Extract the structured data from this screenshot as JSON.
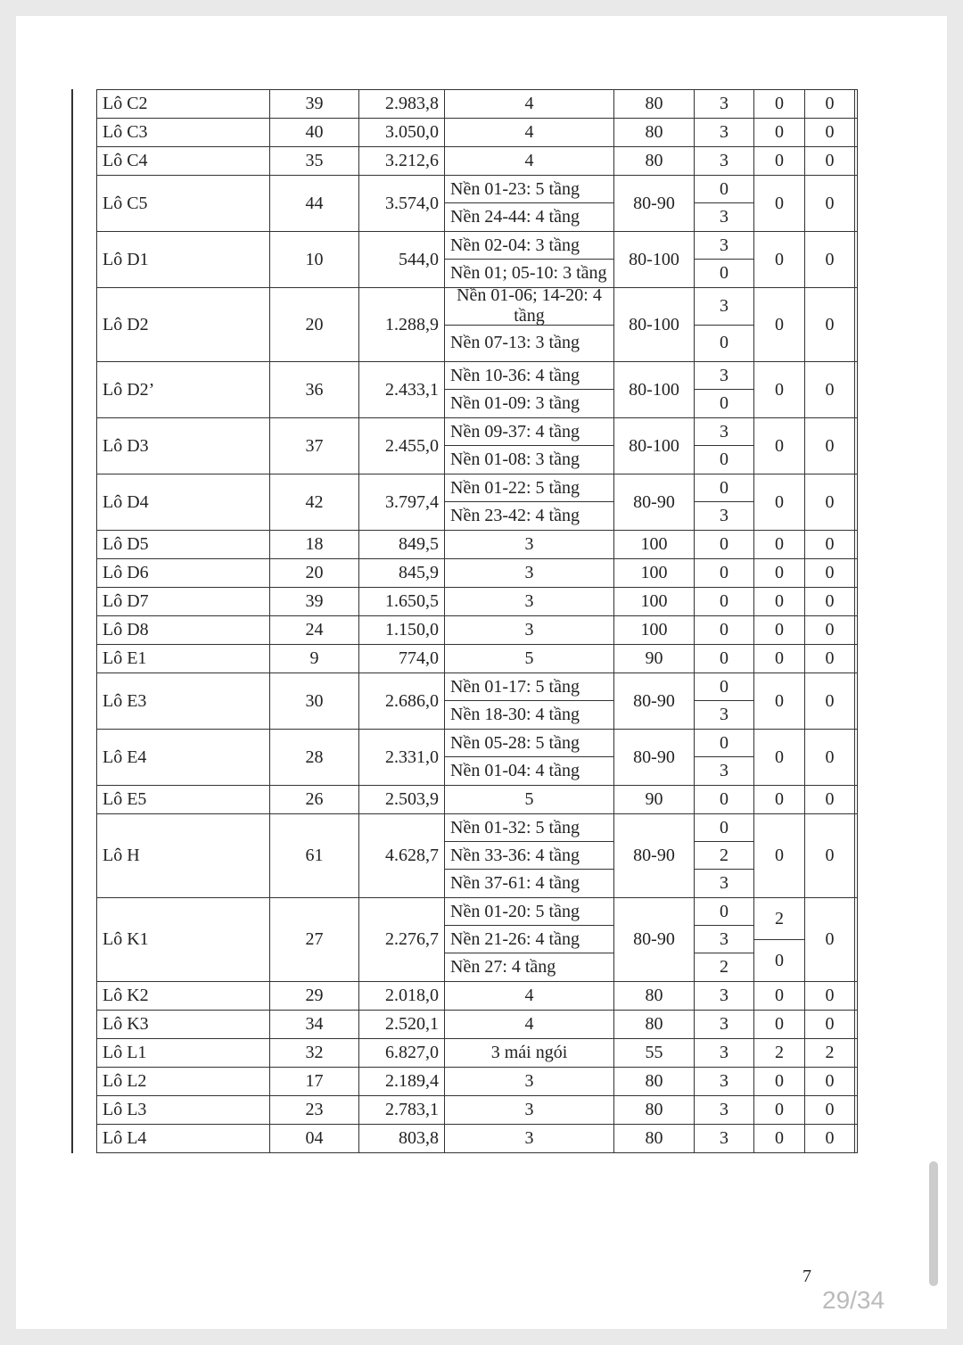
{
  "table": {
    "rows": [
      {
        "name": "Lô C2",
        "count": "39",
        "area": "2.983,8",
        "floors": [
          "4"
        ],
        "density": "80",
        "c6": [
          "3"
        ],
        "c7": [
          "0"
        ],
        "c8": [
          "0"
        ]
      },
      {
        "name": "Lô C3",
        "count": "40",
        "area": "3.050,0",
        "floors": [
          "4"
        ],
        "density": "80",
        "c6": [
          "3"
        ],
        "c7": [
          "0"
        ],
        "c8": [
          "0"
        ]
      },
      {
        "name": "Lô C4",
        "count": "35",
        "area": "3.212,6",
        "floors": [
          "4"
        ],
        "density": "80",
        "c6": [
          "3"
        ],
        "c7": [
          "0"
        ],
        "c8": [
          "0"
        ]
      },
      {
        "name": "Lô C5",
        "count": "44",
        "area": "3.574,0",
        "floors": [
          "Nền 01-23: 5 tầng",
          "Nền 24-44: 4 tầng"
        ],
        "density": "80-90",
        "c6": [
          "0",
          "3"
        ],
        "c7": [
          "0"
        ],
        "c8": [
          "0"
        ]
      },
      {
        "name": "Lô D1",
        "count": "10",
        "area": "544,0",
        "floors": [
          "Nền 02-04: 3 tầng",
          "Nền 01; 05-10: 3 tầng"
        ],
        "density": "80-100",
        "c6": [
          "3",
          "0"
        ],
        "c7": [
          "0"
        ],
        "c8": [
          "0"
        ]
      },
      {
        "name": "Lô D2",
        "count": "20",
        "area": "1.288,9",
        "floors": [
          "Nền 01-06; 14-20: 4 tầng",
          "Nền 07-13: 3 tầng"
        ],
        "density": "80-100",
        "c6": [
          "3",
          "0"
        ],
        "c7": [
          "0"
        ],
        "c8": [
          "0"
        ]
      },
      {
        "name": "Lô D2’",
        "count": "36",
        "area": "2.433,1",
        "floors": [
          "Nền 10-36: 4 tầng",
          "Nền 01-09: 3 tầng"
        ],
        "density": "80-100",
        "c6": [
          "3",
          "0"
        ],
        "c7": [
          "0"
        ],
        "c8": [
          "0"
        ]
      },
      {
        "name": "Lô D3",
        "count": "37",
        "area": "2.455,0",
        "floors": [
          "Nền 09-37: 4 tầng",
          "Nền 01-08: 3 tầng"
        ],
        "density": "80-100",
        "c6": [
          "3",
          "0"
        ],
        "c7": [
          "0"
        ],
        "c8": [
          "0"
        ]
      },
      {
        "name": "Lô D4",
        "count": "42",
        "area": "3.797,4",
        "floors": [
          "Nền 01-22: 5 tầng",
          "Nền 23-42: 4 tầng"
        ],
        "density": "80-90",
        "c6": [
          "0",
          "3"
        ],
        "c7": [
          "0"
        ],
        "c8": [
          "0"
        ]
      },
      {
        "name": "Lô D5",
        "count": "18",
        "area": "849,5",
        "floors": [
          "3"
        ],
        "density": "100",
        "c6": [
          "0"
        ],
        "c7": [
          "0"
        ],
        "c8": [
          "0"
        ]
      },
      {
        "name": "Lô D6",
        "count": "20",
        "area": "845,9",
        "floors": [
          "3"
        ],
        "density": "100",
        "c6": [
          "0"
        ],
        "c7": [
          "0"
        ],
        "c8": [
          "0"
        ]
      },
      {
        "name": "Lô D7",
        "count": "39",
        "area": "1.650,5",
        "floors": [
          "3"
        ],
        "density": "100",
        "c6": [
          "0"
        ],
        "c7": [
          "0"
        ],
        "c8": [
          "0"
        ]
      },
      {
        "name": "Lô D8",
        "count": "24",
        "area": "1.150,0",
        "floors": [
          "3"
        ],
        "density": "100",
        "c6": [
          "0"
        ],
        "c7": [
          "0"
        ],
        "c8": [
          "0"
        ]
      },
      {
        "name": "Lô E1",
        "count": "9",
        "area": "774,0",
        "floors": [
          "5"
        ],
        "density": "90",
        "c6": [
          "0"
        ],
        "c7": [
          "0"
        ],
        "c8": [
          "0"
        ]
      },
      {
        "name": "Lô E3",
        "count": "30",
        "area": "2.686,0",
        "floors": [
          "Nền 01-17: 5 tầng",
          "Nền 18-30: 4 tầng"
        ],
        "density": "80-90",
        "c6": [
          "0",
          "3"
        ],
        "c7": [
          "0"
        ],
        "c8": [
          "0"
        ]
      },
      {
        "name": "Lô E4",
        "count": "28",
        "area": "2.331,0",
        "floors": [
          "Nền 05-28: 5 tầng",
          "Nền 01-04: 4 tầng"
        ],
        "density": "80-90",
        "c6": [
          "0",
          "3"
        ],
        "c7": [
          "0"
        ],
        "c8": [
          "0"
        ]
      },
      {
        "name": "Lô E5",
        "count": "26",
        "area": "2.503,9",
        "floors": [
          "5"
        ],
        "density": "90",
        "c6": [
          "0"
        ],
        "c7": [
          "0"
        ],
        "c8": [
          "0"
        ]
      },
      {
        "name": "Lô H",
        "count": "61",
        "area": "4.628,7",
        "floors": [
          "Nền 01-32: 5 tầng",
          "Nền 33-36: 4 tầng",
          "Nền 37-61: 4 tầng"
        ],
        "density": "80-90",
        "c6": [
          "0",
          "2",
          "3"
        ],
        "c7": [
          "0"
        ],
        "c8": [
          "0"
        ]
      },
      {
        "name": "Lô K1",
        "count": "27",
        "area": "2.276,7",
        "floors": [
          "Nền 01-20: 5 tầng",
          "Nền 21-26: 4 tầng",
          "Nền 27: 4 tầng"
        ],
        "density": "80-90",
        "c6": [
          "0",
          "3",
          "2"
        ],
        "c7": [
          "2",
          "0"
        ],
        "c8": [
          "0"
        ]
      },
      {
        "name": "Lô K2",
        "count": "29",
        "area": "2.018,0",
        "floors": [
          "4"
        ],
        "density": "80",
        "c6": [
          "3"
        ],
        "c7": [
          "0"
        ],
        "c8": [
          "0"
        ]
      },
      {
        "name": "Lô K3",
        "count": "34",
        "area": "2.520,1",
        "floors": [
          "4"
        ],
        "density": "80",
        "c6": [
          "3"
        ],
        "c7": [
          "0"
        ],
        "c8": [
          "0"
        ]
      },
      {
        "name": "Lô L1",
        "count": "32",
        "area": "6.827,0",
        "floors": [
          "3 mái ngói"
        ],
        "density": "55",
        "c6": [
          "3"
        ],
        "c7": [
          "2"
        ],
        "c8": [
          "2"
        ]
      },
      {
        "name": "Lô L2",
        "count": "17",
        "area": "2.189,4",
        "floors": [
          "3"
        ],
        "density": "80",
        "c6": [
          "3"
        ],
        "c7": [
          "0"
        ],
        "c8": [
          "0"
        ]
      },
      {
        "name": "Lô L3",
        "count": "23",
        "area": "2.783,1",
        "floors": [
          "3"
        ],
        "density": "80",
        "c6": [
          "3"
        ],
        "c7": [
          "0"
        ],
        "c8": [
          "0"
        ]
      },
      {
        "name": "Lô L4",
        "count": "04",
        "area": "803,8",
        "floors": [
          "3"
        ],
        "density": "80",
        "c6": [
          "3"
        ],
        "c7": [
          "0"
        ],
        "c8": [
          "0"
        ]
      }
    ]
  },
  "footer": {
    "page_number": "7",
    "page_indicator": "29/34"
  }
}
